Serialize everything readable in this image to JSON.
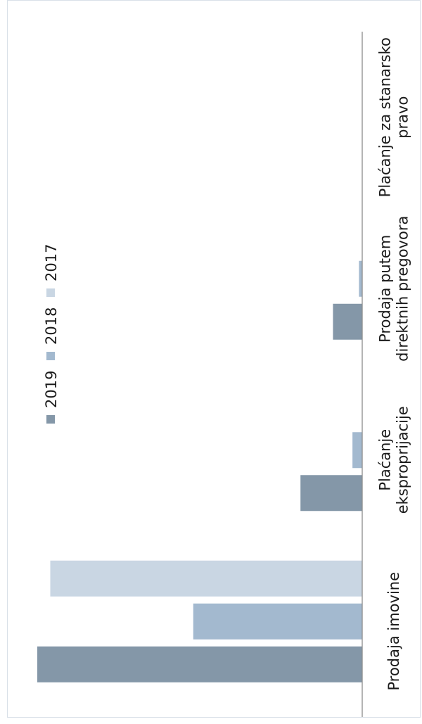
{
  "chart_data": {
    "type": "bar",
    "orientation": "rotated-90-clockwise",
    "categories": [
      [
        "Prodaja imovine"
      ],
      [
        "Plaćanje",
        "eksproprijacije"
      ],
      [
        "Prodaja putem",
        "direktnih pregovora"
      ],
      [
        "Plaćanje za stanarsko",
        "pravo"
      ]
    ],
    "series": [
      {
        "name": "2019",
        "color": "#8497a8",
        "values": [
          100,
          19,
          9,
          0
        ]
      },
      {
        "name": "2018",
        "color": "#a3b9cf",
        "values": [
          52,
          3,
          1,
          0
        ]
      },
      {
        "name": "2017",
        "color": "#c9d6e3",
        "values": [
          96,
          0,
          0,
          0
        ]
      }
    ],
    "ylim": [
      0,
      100
    ],
    "title": "",
    "xlabel": "",
    "ylabel": "",
    "grid": false,
    "legend_position": "top"
  }
}
